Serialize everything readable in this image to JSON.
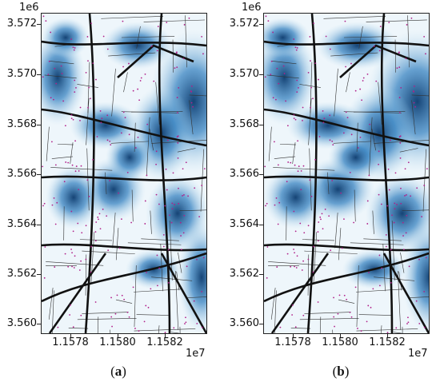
{
  "colors": {
    "heat_dark": "#0a3a6e",
    "heat_mid": "#2b7bbd",
    "heat_light": "#b9dcf0",
    "background": "#eef6fb",
    "road_major": "#111111",
    "road_minor": "#333333",
    "points": "#b0208a"
  },
  "axes": {
    "y_exponent": "1e6",
    "x_exponent": "1e7",
    "y_ticks": [
      "3.572",
      "3.570",
      "3.568",
      "3.566",
      "3.564",
      "3.562",
      "3.560"
    ],
    "x_ticks": [
      "1.1578",
      "1.1580",
      "1.1582"
    ]
  },
  "panels": [
    {
      "id": "a",
      "caption_open": "(",
      "caption_letter": "a",
      "caption_close": ")"
    },
    {
      "id": "b",
      "caption_open": "(",
      "caption_letter": "b",
      "caption_close": ")"
    }
  ]
}
